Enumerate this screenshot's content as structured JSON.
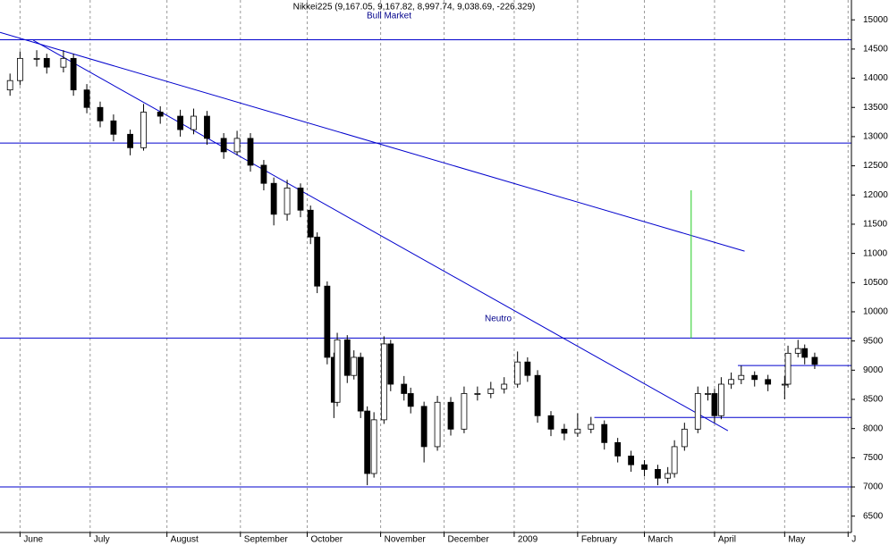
{
  "chart_data": {
    "type": "candlestick",
    "title": "Nikkei225 (9,167.05, 9,167.82, 8,997.74, 9,038.69, -226.329)",
    "annotations": [
      "Bull Market",
      "Neutro"
    ],
    "x": [
      -3,
      0,
      5,
      8,
      13,
      16,
      20,
      24,
      28,
      33,
      37,
      42,
      48,
      52,
      56,
      61,
      65,
      69,
      73,
      76,
      80,
      84,
      87,
      89,
      92,
      94,
      95,
      98,
      100,
      102,
      104,
      106,
      109,
      111,
      115,
      117,
      121,
      125,
      129,
      133,
      137,
      141,
      145,
      149,
      152,
      155,
      159,
      163,
      167,
      171,
      175,
      179,
      183,
      187,
      191,
      194,
      196,
      199,
      203,
      206,
      208,
      210,
      213,
      216,
      220,
      224,
      229,
      230,
      233,
      235,
      238
    ],
    "open": [
      13800,
      13960,
      14340,
      14340,
      14190,
      14340,
      13800,
      13500,
      13270,
      13040,
      12810,
      13420,
      13350,
      13120,
      13350,
      12970,
      12740,
      12970,
      12510,
      12200,
      11670,
      12120,
      11740,
      11280,
      10440,
      9220,
      8450,
      9520,
      8910,
      9220,
      8300,
      7230,
      8150,
      9450,
      8760,
      8600,
      8380,
      7690,
      8450,
      7990,
      8600,
      8600,
      8680,
      8760,
      9140,
      8910,
      8220,
      7990,
      7920,
      7990,
      8070,
      7760,
      7530,
      7380,
      7300,
      7150,
      7230,
      7690,
      7990,
      8600,
      8600,
      8220,
      8760,
      8840,
      8910,
      8840,
      8760,
      8760,
      9290,
      9370,
      9220
    ],
    "high": [
      14080,
      14460,
      14480,
      14420,
      14480,
      14420,
      13900,
      13600,
      13380,
      13120,
      13560,
      13520,
      13460,
      13480,
      13440,
      13060,
      13100,
      13060,
      12600,
      12300,
      12260,
      12200,
      11820,
      11360,
      10520,
      9300,
      9640,
      9600,
      9340,
      9300,
      8380,
      8280,
      9580,
      9520,
      8900,
      8700,
      8460,
      8560,
      8540,
      8720,
      8720,
      8800,
      8880,
      9320,
      9220,
      9000,
      8300,
      8080,
      8260,
      8200,
      8140,
      7840,
      7620,
      7460,
      7380,
      7340,
      7800,
      8100,
      8720,
      8720,
      8680,
      8880,
      8960,
      9080,
      8980,
      8920,
      8900,
      9420,
      9520,
      9440,
      9300
    ],
    "low": [
      13700,
      13880,
      14200,
      14080,
      14100,
      13700,
      13400,
      13160,
      12920,
      12680,
      12760,
      13220,
      13000,
      13040,
      12860,
      12620,
      12680,
      12400,
      12080,
      11480,
      11560,
      11620,
      11160,
      10320,
      9100,
      8180,
      8380,
      8780,
      8840,
      8180,
      7030,
      7160,
      8080,
      8640,
      8480,
      8260,
      7420,
      7620,
      7880,
      7920,
      8480,
      8520,
      8600,
      8700,
      8800,
      8100,
      7870,
      7800,
      7860,
      7920,
      7640,
      7420,
      7260,
      7180,
      7030,
      7060,
      7160,
      7620,
      7920,
      8480,
      8100,
      8160,
      8680,
      8760,
      8720,
      8640,
      8500,
      8700,
      9220,
      9100,
      9020
    ],
    "close": [
      13960,
      14340,
      14340,
      14190,
      14340,
      13800,
      13500,
      13270,
      13040,
      12810,
      13420,
      13350,
      13120,
      13350,
      12970,
      12740,
      12970,
      12510,
      12200,
      11670,
      12120,
      11740,
      11280,
      10440,
      9220,
      8450,
      9520,
      8910,
      9220,
      8300,
      7230,
      8150,
      9450,
      8760,
      8600,
      8380,
      7690,
      8450,
      7990,
      8600,
      8600,
      8680,
      8760,
      9140,
      8910,
      8220,
      7990,
      7920,
      7990,
      8070,
      7760,
      7530,
      7380,
      7300,
      7150,
      7230,
      7690,
      7990,
      8600,
      8600,
      8220,
      8760,
      8840,
      8910,
      8840,
      8760,
      8760,
      9290,
      9370,
      9220,
      9100
    ],
    "up_color": "#ffffff",
    "down_color": "#000000",
    "xlim": [
      -6,
      249
    ],
    "ylim": [
      6220,
      15340
    ],
    "xticks": [
      {
        "value": 0,
        "label": "June"
      },
      {
        "value": 21,
        "label": "July"
      },
      {
        "value": 44,
        "label": "August"
      },
      {
        "value": 66,
        "label": "September"
      },
      {
        "value": 86,
        "label": "October"
      },
      {
        "value": 108,
        "label": "November"
      },
      {
        "value": 127,
        "label": "December"
      },
      {
        "value": 148,
        "label": "2009"
      },
      {
        "value": 167,
        "label": "February"
      },
      {
        "value": 187,
        "label": "March"
      },
      {
        "value": 208,
        "label": "April"
      },
      {
        "value": 229,
        "label": "May"
      },
      {
        "value": 248,
        "label": "J"
      }
    ],
    "yticks": [
      6500,
      7000,
      7500,
      8000,
      8500,
      9000,
      9500,
      10000,
      10500,
      11000,
      11500,
      12000,
      12500,
      13000,
      13500,
      14000,
      14500,
      15000
    ],
    "lines": [
      {
        "color": "#0000cd",
        "x": [
          -6,
          249
        ],
        "y": [
          14660,
          14660
        ]
      },
      {
        "color": "#0000cd",
        "x": [
          -6,
          249
        ],
        "y": [
          12890,
          12890
        ]
      },
      {
        "color": "#0000cd",
        "x": [
          -6,
          249
        ],
        "y": [
          9550,
          9550
        ]
      },
      {
        "color": "#0000cd",
        "x": [
          -6,
          249
        ],
        "y": [
          7000,
          7000
        ]
      },
      {
        "color": "#0000cd",
        "x": [
          215,
          249
        ],
        "y": [
          9080,
          9080
        ]
      },
      {
        "color": "#0000cd",
        "x": [
          172,
          249
        ],
        "y": [
          8190,
          8190
        ]
      },
      {
        "color": "#0000cd",
        "x": [
          -6,
          217
        ],
        "y": [
          14785,
          11038
        ]
      },
      {
        "color": "#0000cd",
        "x": [
          4,
          212
        ],
        "y": [
          14648,
          7964
        ]
      },
      {
        "color": "#22cc22",
        "x": [
          201,
          201
        ],
        "y": [
          12080,
          9550
        ]
      }
    ]
  }
}
